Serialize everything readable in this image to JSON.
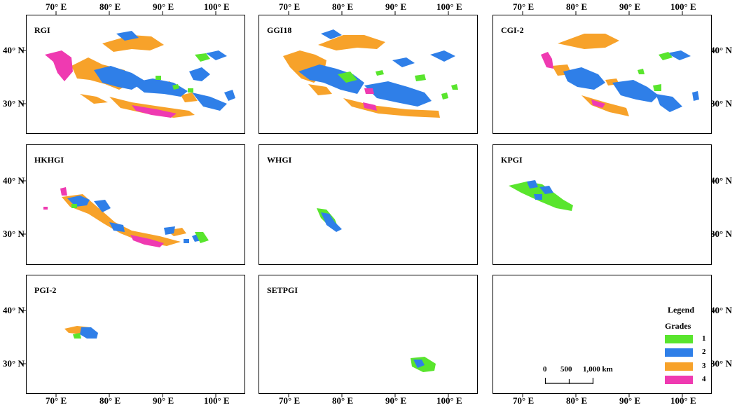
{
  "colors": {
    "grade1": "#59e52d",
    "grade2": "#2f7fe8",
    "grade3": "#f7a22a",
    "grade4": "#ef3ab1"
  },
  "axis": {
    "longitude_labels": [
      "70° E",
      "80° E",
      "90° E",
      "100° E"
    ],
    "latitude_labels": [
      "40° N",
      "30° N"
    ]
  },
  "panels": [
    {
      "title": "RGI"
    },
    {
      "title": "GGI18"
    },
    {
      "title": "CGI-2"
    },
    {
      "title": "HKHGI"
    },
    {
      "title": "WHGI"
    },
    {
      "title": "KPGI"
    },
    {
      "title": "PGI-2"
    },
    {
      "title": "SETPGI"
    },
    {
      "title": ""
    }
  ],
  "legend": {
    "title": "Legend",
    "subtitle": "Grades",
    "items": [
      {
        "label": "1",
        "color": "#59e52d"
      },
      {
        "label": "2",
        "color": "#2f7fe8"
      },
      {
        "label": "3",
        "color": "#f7a22a"
      },
      {
        "label": "4",
        "color": "#ef3ab1"
      }
    ]
  },
  "scale_bar": {
    "labels": [
      "0",
      "500",
      "1,000 km"
    ]
  }
}
